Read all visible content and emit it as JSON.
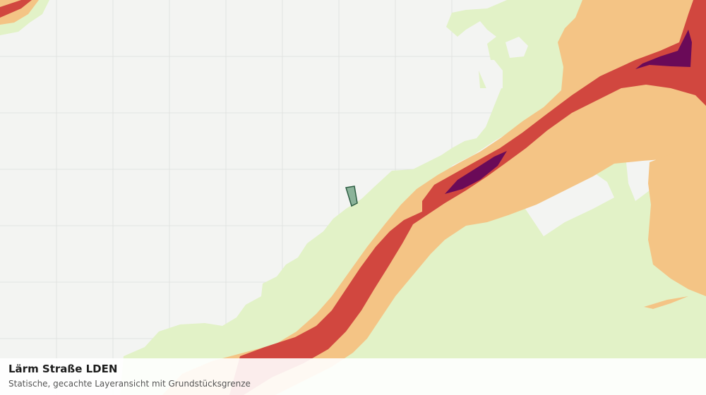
{
  "map": {
    "caption": {
      "title": "Lärm Straße LDEN",
      "subtitle": "Statische, gecachte Layeransicht mit Grundstücksgrenze"
    },
    "noise_band_colors": {
      "lowest": "#e2f2c7",
      "low": "#f4c485",
      "medium": "#d1473f",
      "high": "#6a0a58"
    },
    "parcel_color": "#8bb39a",
    "grid_color": "#e1e3e1",
    "background_color": "#f3f4f2"
  }
}
